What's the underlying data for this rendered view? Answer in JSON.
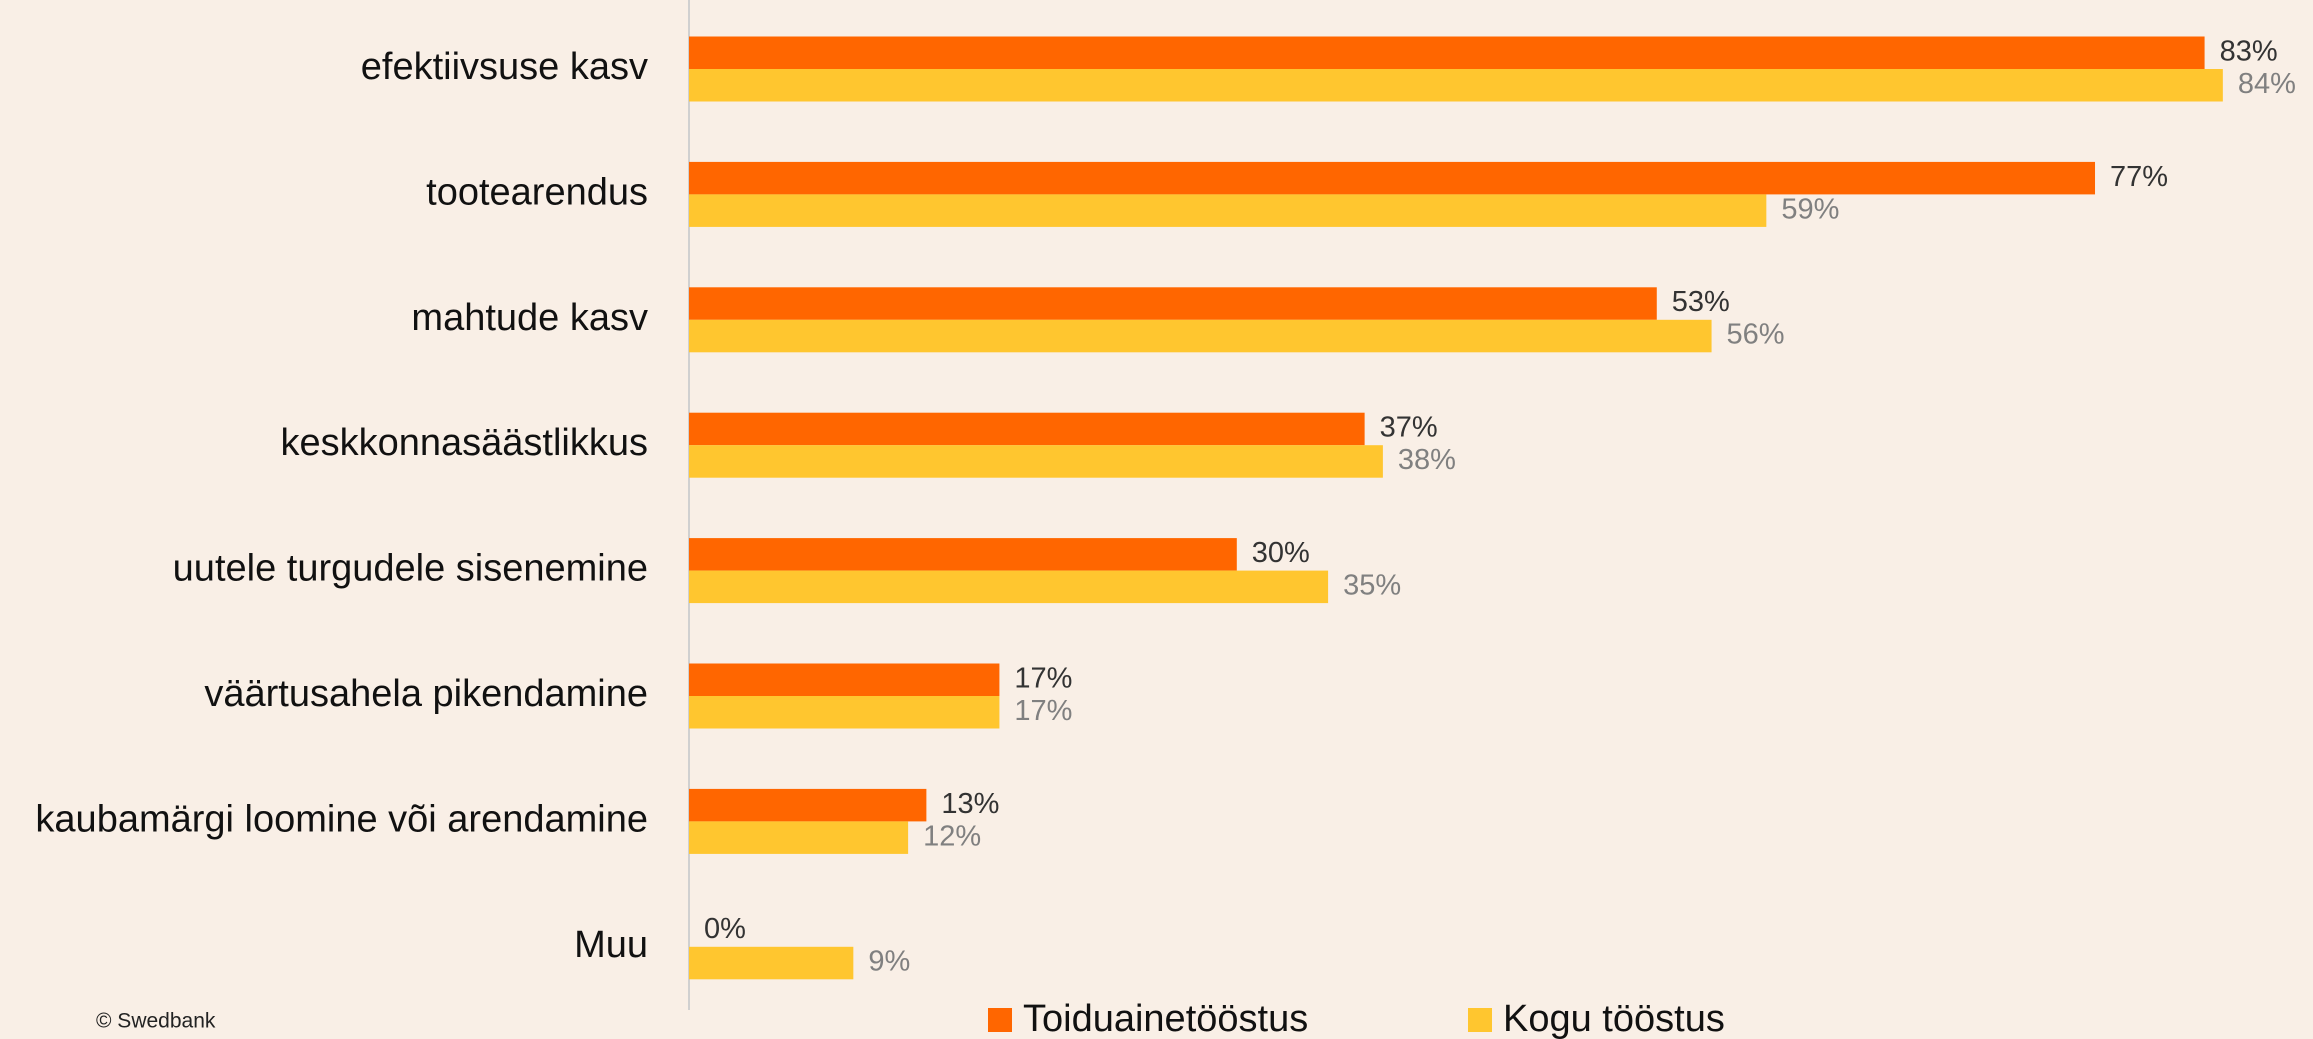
{
  "chart_data": {
    "type": "bar",
    "orientation": "horizontal",
    "categories": [
      "efektiivsuse kasv",
      "tootearendus",
      "mahtude kasv",
      "keskkonnasäästlikkus",
      "uutele turgudele sisenemine",
      "väärtusahela pikendamine",
      "kaubamärgi loomine või arendamine",
      "Muu"
    ],
    "series": [
      {
        "name": "Toiduainetööstus",
        "color": "#ff6600",
        "values": [
          83,
          77,
          53,
          37,
          30,
          17,
          13,
          0
        ],
        "value_labels": [
          "83%",
          "77%",
          "53%",
          "37%",
          "30%",
          "17%",
          "13%",
          "0%"
        ]
      },
      {
        "name": "Kogu tööstus",
        "color": "#ffc62f",
        "values": [
          84,
          59,
          56,
          38,
          35,
          17,
          12,
          9
        ],
        "value_labels": [
          "84%",
          "59%",
          "56%",
          "38%",
          "35%",
          "17%",
          "12%",
          "9%"
        ]
      }
    ],
    "legend": "bottom",
    "source": "© Swedbank"
  }
}
